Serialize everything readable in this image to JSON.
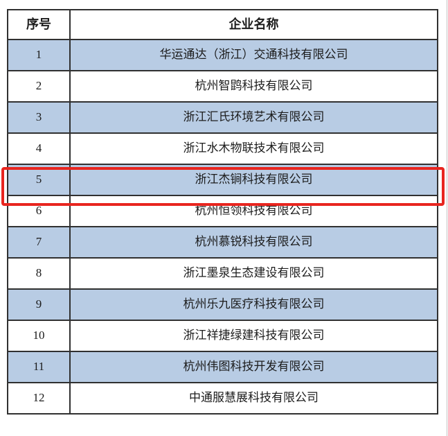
{
  "table": {
    "headers": {
      "no": "序号",
      "name": "企业名称"
    },
    "rows": [
      {
        "no": "1",
        "name": "华运通达（浙江）交通科技有限公司",
        "shaded": true,
        "highlighted": false
      },
      {
        "no": "2",
        "name": "杭州智鹍科技有限公司",
        "shaded": false,
        "highlighted": false
      },
      {
        "no": "3",
        "name": "浙江汇氏环境艺术有限公司",
        "shaded": true,
        "highlighted": false
      },
      {
        "no": "4",
        "name": "浙江水木物联技术有限公司",
        "shaded": false,
        "highlighted": false
      },
      {
        "no": "5",
        "name": "浙江杰锏科技有限公司",
        "shaded": true,
        "highlighted": true
      },
      {
        "no": "6",
        "name": "杭州恒领科技有限公司",
        "shaded": false,
        "highlighted": false
      },
      {
        "no": "7",
        "name": "杭州慕锐科技有限公司",
        "shaded": true,
        "highlighted": false
      },
      {
        "no": "8",
        "name": "浙江墨泉生态建设有限公司",
        "shaded": false,
        "highlighted": false
      },
      {
        "no": "9",
        "name": "杭州乐九医疗科技有限公司",
        "shaded": true,
        "highlighted": false
      },
      {
        "no": "10",
        "name": "浙江祥捷绿建科技有限公司",
        "shaded": false,
        "highlighted": false
      },
      {
        "no": "11",
        "name": "杭州伟图科技开发有限公司",
        "shaded": true,
        "highlighted": false
      },
      {
        "no": "12",
        "name": "中通服慧展科技有限公司",
        "shaded": false,
        "highlighted": false
      }
    ]
  },
  "colors": {
    "row_shade": "#b8cce4",
    "grid_line": "#303030",
    "highlight_border": "#e8251f",
    "text": "#1c1c1c",
    "page_edge_line": "#c4c4c4"
  }
}
